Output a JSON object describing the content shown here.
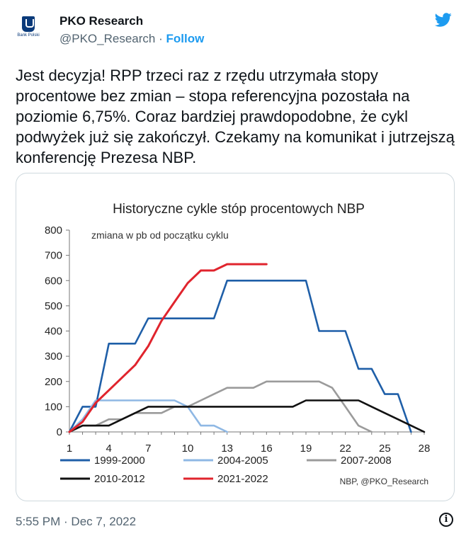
{
  "author": {
    "name": "PKO Research",
    "handle": "@PKO_Research",
    "separator": "·",
    "follow_label": "Follow",
    "avatar_text": "Bank Polski",
    "avatar_icon": "pko-logo-icon",
    "platform_icon": "twitter-bird-icon"
  },
  "tweet": {
    "text": "Jest decyzja! RPP trzeci raz z rzędu utrzymała stopy procentowe bez zmian – stopa referencyjna pozostała na poziomie 6,75%. Coraz bardziej prawdopodobne, że cykl podwyżek już się zakończył. Czekamy na komunikat i jutrzejszą konferencję Prezesa NBP.",
    "timestamp": "5:55 PM · Dec 7, 2022",
    "info_icon": "info-icon"
  },
  "colors": {
    "twitter_blue": "#1d9bf0",
    "series_1999": "#1f5fa8",
    "series_2004": "#8fb8e4",
    "series_2007": "#9b9b9b",
    "series_2010": "#111111",
    "series_2021": "#e0242d"
  },
  "chart_data": {
    "type": "line",
    "title": "Historyczne cykle stóp procentowych NBP",
    "subtitle": "zmiana w pb od początku cyklu",
    "source": "NBP, @PKO_Research",
    "xlim": [
      1,
      28
    ],
    "ylim": [
      0,
      800
    ],
    "x_ticks": [
      1,
      4,
      7,
      10,
      13,
      16,
      19,
      22,
      25,
      28
    ],
    "y_ticks": [
      0,
      100,
      200,
      300,
      400,
      500,
      600,
      700,
      800
    ],
    "grid": false,
    "legend_position": "bottom",
    "series": [
      {
        "name": "1999-2000",
        "color": "#1f5fa8",
        "step": true,
        "x": [
          1,
          2,
          3,
          4,
          5,
          6,
          7,
          8,
          9,
          10,
          11,
          12,
          13,
          14,
          15,
          16,
          17,
          18,
          19,
          20,
          21,
          22,
          23,
          24,
          25,
          26,
          27
        ],
        "y": [
          0,
          100,
          100,
          350,
          350,
          350,
          450,
          450,
          450,
          450,
          450,
          450,
          600,
          600,
          600,
          600,
          600,
          600,
          600,
          400,
          400,
          400,
          250,
          250,
          150,
          150,
          0
        ]
      },
      {
        "name": "2004-2005",
        "color": "#8fb8e4",
        "step": true,
        "x": [
          1,
          2,
          3,
          4,
          5,
          6,
          7,
          8,
          9,
          10,
          11,
          12,
          13
        ],
        "y": [
          0,
          50,
          125,
          125,
          125,
          125,
          125,
          125,
          125,
          100,
          25,
          25,
          0
        ]
      },
      {
        "name": "2007-2008",
        "color": "#9b9b9b",
        "step": false,
        "x": [
          1,
          2,
          3,
          4,
          5,
          6,
          7,
          8,
          9,
          10,
          11,
          12,
          13,
          14,
          15,
          16,
          17,
          18,
          19,
          20,
          21,
          22,
          23,
          24
        ],
        "y": [
          0,
          25,
          25,
          50,
          50,
          75,
          75,
          75,
          100,
          100,
          125,
          150,
          175,
          175,
          175,
          200,
          200,
          200,
          200,
          200,
          175,
          100,
          25,
          0
        ]
      },
      {
        "name": "2010-2012",
        "color": "#111111",
        "step": false,
        "x": [
          1,
          2,
          3,
          4,
          5,
          6,
          7,
          8,
          9,
          10,
          11,
          12,
          13,
          14,
          15,
          16,
          17,
          18,
          19,
          20,
          21,
          22,
          23,
          24,
          25,
          26,
          27,
          28
        ],
        "y": [
          0,
          25,
          25,
          25,
          50,
          75,
          100,
          100,
          100,
          100,
          100,
          100,
          100,
          100,
          100,
          100,
          100,
          100,
          125,
          125,
          125,
          125,
          125,
          100,
          75,
          50,
          25,
          0
        ]
      },
      {
        "name": "2021-2022",
        "color": "#e0242d",
        "step": false,
        "x": [
          1,
          2,
          3,
          4,
          5,
          6,
          7,
          8,
          9,
          10,
          11,
          12,
          13,
          14,
          15,
          16
        ],
        "y": [
          0,
          40,
          115,
          165,
          215,
          265,
          340,
          440,
          515,
          590,
          640,
          640,
          665,
          665,
          665,
          665
        ]
      }
    ]
  }
}
